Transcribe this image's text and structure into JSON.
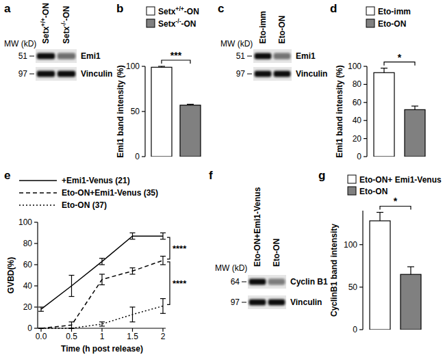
{
  "chart_data": [
    {
      "type": "western_blot",
      "title": "a",
      "mw_label": "MW (kD)",
      "lanes": [
        "Setx+/+-ON",
        "Setx-/--ON"
      ],
      "rows": [
        {
          "name": "Emi1",
          "mw": 51,
          "band_intensity": [
            100,
            57
          ]
        },
        {
          "name": "Vinculin",
          "mw": 97,
          "band_intensity": [
            100,
            100
          ]
        }
      ]
    },
    {
      "type": "bar",
      "title": "b",
      "y_label": "Emi1 band intensity (%)",
      "categories": [
        "Setx+/+-ON",
        "Setx-/--ON"
      ],
      "values": [
        99,
        57
      ],
      "errors": [
        1,
        1
      ],
      "colors": [
        "#ffffff",
        "#808080"
      ],
      "ylim": [
        0,
        100
      ],
      "yticks": [
        0,
        50,
        100
      ],
      "legend": "top",
      "tick_labels": "y",
      "annotations": [
        {
          "text": "***",
          "between": [
            0,
            1
          ]
        }
      ]
    },
    {
      "type": "western_blot",
      "title": "c",
      "mw_label": "MW (kD)",
      "lanes": [
        "Eto-imm",
        "Eto-ON"
      ],
      "rows": [
        {
          "name": "Emi1",
          "mw": 51,
          "band_intensity": [
            100,
            55
          ]
        },
        {
          "name": "Vinculin",
          "mw": 97,
          "band_intensity": [
            100,
            100
          ]
        }
      ]
    },
    {
      "type": "bar",
      "title": "d",
      "y_label": "Emi1 band intensity (%)",
      "categories": [
        "Eto-imm",
        "Eto-ON"
      ],
      "values": [
        93,
        52
      ],
      "errors": [
        5,
        4
      ],
      "colors": [
        "#ffffff",
        "#808080"
      ],
      "ylim": [
        0,
        100
      ],
      "yticks": [
        0,
        20,
        40,
        60,
        80,
        100
      ],
      "legend": "top",
      "tick_labels": "y",
      "annotations": [
        {
          "text": "*",
          "between": [
            0,
            1
          ]
        }
      ]
    },
    {
      "type": "line",
      "title": "e",
      "x_label": "Time (h post release)",
      "y_label": "GVBD(%)",
      "x": [
        0,
        0.5,
        1,
        1.5,
        2
      ],
      "xlim": [
        0,
        2
      ],
      "xticks": [
        {
          "value": 0,
          "label": "0.0"
        },
        0.5,
        1,
        1.5,
        2
      ],
      "ylim": [
        0,
        100
      ],
      "yticks": [
        0,
        20,
        40,
        60,
        80,
        100
      ],
      "legend": "top left",
      "series": [
        {
          "name": "+Emi1-Venus (21)",
          "color": "#000000",
          "line_style": "solid",
          "values": [
            18,
            40,
            63,
            87,
            87
          ],
          "errors": [
            2,
            10,
            3,
            3,
            3
          ]
        },
        {
          "name": "Eto-ON+Emi1-Venus (35)",
          "color": "#000000",
          "line_style": "dashed",
          "values": [
            0,
            3,
            46,
            54,
            64
          ],
          "errors": [
            0,
            3,
            5,
            3,
            4
          ]
        },
        {
          "name": "Eto-ON (37)",
          "color": "#000000",
          "line_style": "dotted",
          "values": [
            0,
            0,
            4,
            13,
            21
          ],
          "errors": [
            0,
            0,
            2,
            7,
            7
          ]
        }
      ],
      "annotations": [
        {
          "text": "****",
          "between": [
            0,
            1
          ]
        },
        {
          "text": "****",
          "between": [
            1,
            2
          ]
        }
      ]
    },
    {
      "type": "western_blot",
      "title": "f",
      "mw_label": "MW (kD)",
      "lanes": [
        "Eto-ON+Emi1-Venus",
        "Eto-ON"
      ],
      "rows": [
        {
          "name": "Cyclin B1",
          "mw": 64,
          "band_intensity": [
            100,
            50
          ]
        },
        {
          "name": "Vinculin",
          "mw": 97,
          "band_intensity": [
            100,
            100
          ]
        }
      ]
    },
    {
      "type": "bar",
      "title": "g",
      "y_label": "CyclinB1 band intensity",
      "categories": [
        "Eto-ON+ Emi1-Venus",
        "Eto-ON"
      ],
      "values": [
        128,
        65
      ],
      "errors": [
        10,
        9
      ],
      "colors": [
        "#ffffff",
        "#808080"
      ],
      "ylim": [
        0,
        140
      ],
      "yticks": [
        0,
        50,
        100
      ],
      "legend": "top",
      "tick_labels": "y",
      "annotations": [
        {
          "text": "*",
          "between": [
            0,
            1
          ]
        }
      ]
    }
  ]
}
